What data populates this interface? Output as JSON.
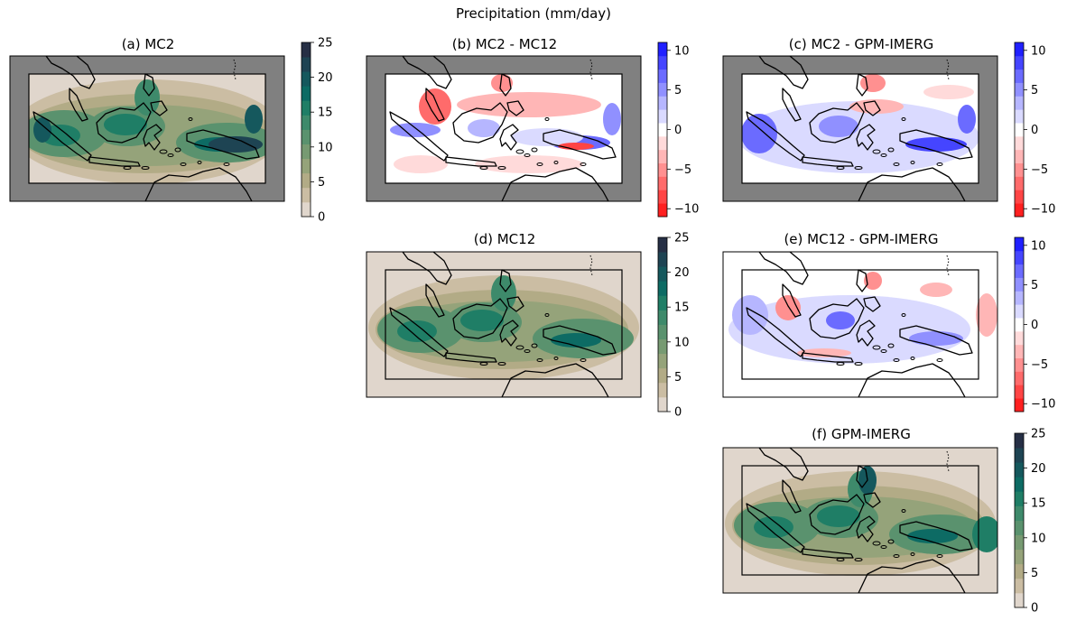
{
  "figure": {
    "suptitle": "Precipitation (mm/day)"
  },
  "chart_data": [
    {
      "type": "heatmap",
      "title": "(a) MC2",
      "variable": "precipitation",
      "colormap": "sequential: beige to dark green to navy",
      "inner_domain_box": true,
      "outside_domain_color": "#808080",
      "colorbar": {
        "min": 0,
        "max": 25,
        "ticks": [
          0,
          5,
          10,
          15,
          20,
          25
        ],
        "tick_labels": [
          "0",
          "5",
          "10",
          "15",
          "20",
          "25"
        ]
      }
    },
    {
      "type": "heatmap",
      "title": "(b) MC2 - MC12",
      "variable": "precipitation difference",
      "colormap": "diverging: red to white to blue",
      "inner_domain_box": true,
      "outside_domain_color": "#808080",
      "colorbar": {
        "min": -11,
        "max": 11,
        "ticks": [
          -10,
          -5,
          0,
          5,
          10
        ],
        "tick_labels": [
          "−10",
          "−5",
          "0",
          "5",
          "10"
        ]
      }
    },
    {
      "type": "heatmap",
      "title": "(c) MC2 - GPM-IMERG",
      "variable": "precipitation difference",
      "colormap": "diverging: red to white to blue",
      "inner_domain_box": true,
      "outside_domain_color": "#808080",
      "colorbar": {
        "min": -11,
        "max": 11,
        "ticks": [
          -10,
          -5,
          0,
          5,
          10
        ],
        "tick_labels": [
          "−10",
          "−5",
          "0",
          "5",
          "10"
        ]
      }
    },
    {
      "type": "heatmap",
      "title": "(d) MC12",
      "variable": "precipitation",
      "colormap": "sequential: beige to dark green to navy",
      "inner_domain_box": true,
      "colorbar": {
        "min": 0,
        "max": 25,
        "ticks": [
          0,
          5,
          10,
          15,
          20,
          25
        ],
        "tick_labels": [
          "0",
          "5",
          "10",
          "15",
          "20",
          "25"
        ]
      }
    },
    {
      "type": "heatmap",
      "title": "(e) MC12 - GPM-IMERG",
      "variable": "precipitation difference",
      "colormap": "diverging: red to white to blue",
      "inner_domain_box": true,
      "colorbar": {
        "min": -11,
        "max": 11,
        "ticks": [
          -10,
          -5,
          0,
          5,
          10
        ],
        "tick_labels": [
          "−10",
          "−5",
          "0",
          "5",
          "10"
        ]
      }
    },
    {
      "type": "heatmap",
      "title": "(f) GPM-IMERG",
      "variable": "precipitation",
      "colormap": "sequential: beige to dark green to navy",
      "inner_domain_box": true,
      "colorbar": {
        "min": 0,
        "max": 25,
        "ticks": [
          0,
          5,
          10,
          15,
          20,
          25
        ],
        "tick_labels": [
          "0",
          "5",
          "10",
          "15",
          "20",
          "25"
        ]
      }
    }
  ],
  "colors": {
    "seq": [
      "#e0d6cc",
      "#cbbda3",
      "#b2ab86",
      "#95a37a",
      "#779a72",
      "#5a926e",
      "#3e8a6b",
      "#1f7e66",
      "#0d6b64",
      "#15585d",
      "#1e4453",
      "#262f45"
    ],
    "div": [
      "#ff2020",
      "#ff4545",
      "#ff6b6b",
      "#ff9090",
      "#ffb6b6",
      "#ffdada",
      "#ffffff",
      "#dadaff",
      "#b6b6ff",
      "#9090ff",
      "#6b6bff",
      "#4545ff",
      "#2020ff"
    ],
    "outside": "#808080",
    "coast": "#000000"
  }
}
